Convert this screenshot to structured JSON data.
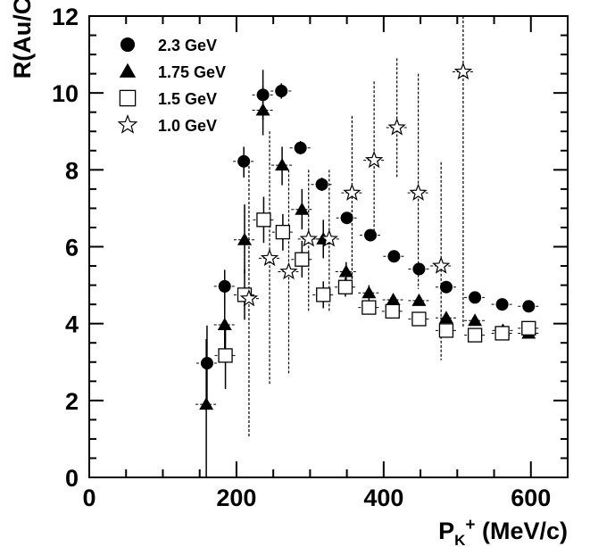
{
  "chart_data": {
    "type": "scatter",
    "title": "",
    "xlabel": "P",
    "xlabel_sub": "K",
    "xlabel_sup": "+",
    "xlabel_unit": " (MeV/c)",
    "ylabel": "R(Au/C)",
    "xlim": [
      0,
      650
    ],
    "ylim": [
      0,
      12
    ],
    "xticks": [
      0,
      200,
      400,
      600
    ],
    "xtick_labels": [
      "0",
      "200",
      "400",
      "600"
    ],
    "yticks": [
      0,
      2,
      4,
      6,
      8,
      10,
      12
    ],
    "ytick_labels": [
      "0",
      "2",
      "4",
      "6",
      "8",
      "10",
      "12"
    ],
    "grid": false,
    "legend_position": "top-left",
    "series": [
      {
        "name": "2.3 GeV",
        "marker": "filled-circle",
        "error_style": "solid",
        "points": [
          {
            "x": 160,
            "y": 2.97,
            "ylo": 1.9,
            "yhi": 3.95
          },
          {
            "x": 184,
            "y": 4.97,
            "ylo": 4.5,
            "yhi": 5.4
          },
          {
            "x": 210,
            "y": 8.22,
            "ylo": 7.8,
            "yhi": 8.6
          },
          {
            "x": 236,
            "y": 9.95,
            "ylo": 9.3,
            "yhi": 10.6
          },
          {
            "x": 261,
            "y": 10.05,
            "ylo": 9.85,
            "yhi": 10.25
          },
          {
            "x": 287,
            "y": 8.57,
            "ylo": 8.4,
            "yhi": 8.75
          },
          {
            "x": 316,
            "y": 7.62,
            "ylo": 7.45,
            "yhi": 7.8
          },
          {
            "x": 350,
            "y": 6.75,
            "ylo": 6.6,
            "yhi": 6.9
          },
          {
            "x": 382,
            "y": 6.3,
            "ylo": 6.2,
            "yhi": 6.4
          },
          {
            "x": 414,
            "y": 5.75,
            "ylo": 5.68,
            "yhi": 5.82
          },
          {
            "x": 448,
            "y": 5.42,
            "ylo": 5.35,
            "yhi": 5.5
          },
          {
            "x": 485,
            "y": 4.95,
            "ylo": 4.9,
            "yhi": 5.0
          },
          {
            "x": 524,
            "y": 4.68,
            "ylo": 4.63,
            "yhi": 4.73
          },
          {
            "x": 561,
            "y": 4.5,
            "ylo": 4.45,
            "yhi": 4.55
          },
          {
            "x": 597,
            "y": 4.45,
            "ylo": 4.4,
            "yhi": 4.5
          }
        ]
      },
      {
        "name": "1.75 GeV",
        "marker": "filled-triangle",
        "error_style": "solid",
        "points": [
          {
            "x": 159,
            "y": 1.9,
            "ylo": 0,
            "yhi": 3.6
          },
          {
            "x": 184,
            "y": 3.97,
            "ylo": 3.2,
            "yhi": 4.7
          },
          {
            "x": 211,
            "y": 6.18,
            "ylo": 5.3,
            "yhi": 7.1
          },
          {
            "x": 236,
            "y": 9.55,
            "ylo": 8.9,
            "yhi": 10.2
          },
          {
            "x": 262,
            "y": 8.12,
            "ylo": 7.6,
            "yhi": 8.6
          },
          {
            "x": 289,
            "y": 6.97,
            "ylo": 6.45,
            "yhi": 7.5
          },
          {
            "x": 318,
            "y": 6.2,
            "ylo": 5.7,
            "yhi": 6.7
          },
          {
            "x": 349,
            "y": 5.35,
            "ylo": 5.1,
            "yhi": 5.6
          },
          {
            "x": 380,
            "y": 4.8,
            "ylo": 4.6,
            "yhi": 5.0
          },
          {
            "x": 413,
            "y": 4.62,
            "ylo": 4.5,
            "yhi": 4.75
          },
          {
            "x": 448,
            "y": 4.6,
            "ylo": 4.5,
            "yhi": 4.7
          },
          {
            "x": 485,
            "y": 4.15,
            "ylo": 4.05,
            "yhi": 4.25
          },
          {
            "x": 524,
            "y": 4.08,
            "ylo": 4.0,
            "yhi": 4.16
          },
          {
            "x": 562,
            "y": 3.82,
            "ylo": 3.75,
            "yhi": 3.9
          },
          {
            "x": 597,
            "y": 3.75,
            "ylo": 3.68,
            "yhi": 3.82
          }
        ]
      },
      {
        "name": "1.5 GeV",
        "marker": "open-square",
        "error_style": "solid",
        "points": [
          {
            "x": 185,
            "y": 3.17,
            "ylo": 2.3,
            "yhi": 4.0
          },
          {
            "x": 211,
            "y": 4.75,
            "ylo": 4.1,
            "yhi": 5.4
          },
          {
            "x": 237,
            "y": 6.7,
            "ylo": 6.1,
            "yhi": 7.3
          },
          {
            "x": 263,
            "y": 6.38,
            "ylo": 5.9,
            "yhi": 6.85
          },
          {
            "x": 289,
            "y": 5.67,
            "ylo": 5.2,
            "yhi": 6.15
          },
          {
            "x": 318,
            "y": 4.75,
            "ylo": 4.4,
            "yhi": 5.1
          },
          {
            "x": 348,
            "y": 4.95,
            "ylo": 4.7,
            "yhi": 5.2
          },
          {
            "x": 380,
            "y": 4.42,
            "ylo": 4.25,
            "yhi": 4.6
          },
          {
            "x": 412,
            "y": 4.32,
            "ylo": 4.2,
            "yhi": 4.45
          },
          {
            "x": 448,
            "y": 4.12,
            "ylo": 4.02,
            "yhi": 4.22
          },
          {
            "x": 485,
            "y": 3.82,
            "ylo": 3.74,
            "yhi": 3.9
          },
          {
            "x": 524,
            "y": 3.7,
            "ylo": 3.63,
            "yhi": 3.77
          },
          {
            "x": 561,
            "y": 3.75,
            "ylo": 3.68,
            "yhi": 3.82
          },
          {
            "x": 597,
            "y": 3.88,
            "ylo": 3.8,
            "yhi": 3.96
          }
        ]
      },
      {
        "name": "1.0 GeV",
        "marker": "open-star",
        "error_style": "dashed",
        "points": [
          {
            "x": 217,
            "y": 4.65,
            "ylo": 1.05,
            "yhi": 8.1
          },
          {
            "x": 245,
            "y": 5.7,
            "ylo": 2.4,
            "yhi": 9.0
          },
          {
            "x": 271,
            "y": 5.35,
            "ylo": 2.7,
            "yhi": 8.0
          },
          {
            "x": 298,
            "y": 6.2,
            "ylo": 4.3,
            "yhi": 8.0
          },
          {
            "x": 326,
            "y": 6.2,
            "ylo": 4.3,
            "yhi": 8.0
          },
          {
            "x": 357,
            "y": 7.4,
            "ylo": 4.8,
            "yhi": 9.4
          },
          {
            "x": 387,
            "y": 8.25,
            "ylo": 6.3,
            "yhi": 10.3
          },
          {
            "x": 418,
            "y": 9.1,
            "ylo": 7.8,
            "yhi": 10.9
          },
          {
            "x": 447,
            "y": 7.4,
            "ylo": 4.9,
            "yhi": 10.5
          },
          {
            "x": 478,
            "y": 5.5,
            "ylo": 3.05,
            "yhi": 8.2
          },
          {
            "x": 508,
            "y": 10.55,
            "ylo": 3.9,
            "yhi": 12.0
          }
        ]
      }
    ]
  }
}
